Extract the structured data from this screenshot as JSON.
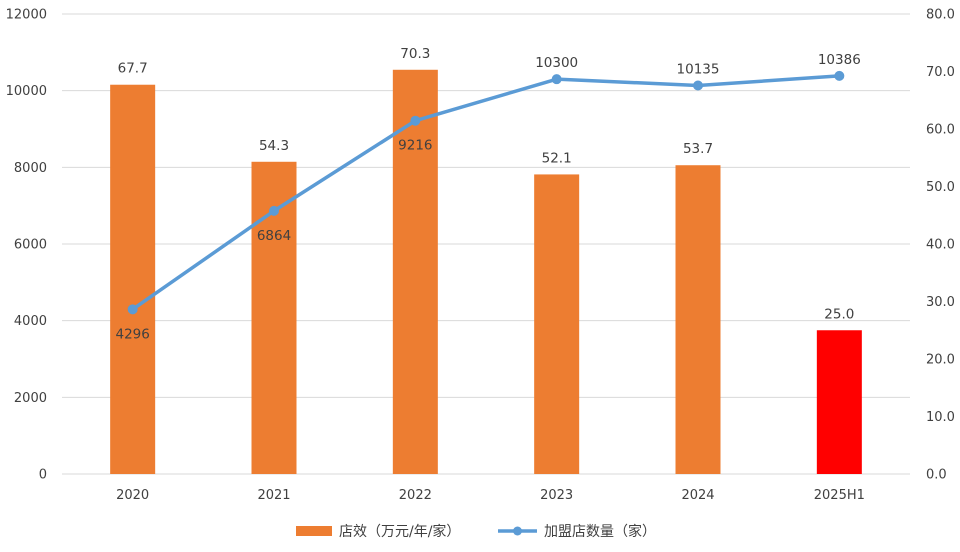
{
  "chart_data": {
    "type": "bar",
    "categories": [
      "2020",
      "2021",
      "2022",
      "2023",
      "2024",
      "2025H1"
    ],
    "series": [
      {
        "name": "店效（万元/年/家）",
        "kind": "bar",
        "axis": "right",
        "values": [
          67.7,
          54.3,
          70.3,
          52.1,
          53.7,
          25.0
        ],
        "labels": [
          "67.7",
          "54.3",
          "70.3",
          "52.1",
          "53.7",
          "25.0"
        ],
        "colors": [
          "#ED7D31",
          "#ED7D31",
          "#ED7D31",
          "#ED7D31",
          "#ED7D31",
          "#FF0000"
        ]
      },
      {
        "name": "加盟店数量（家）",
        "kind": "line",
        "axis": "left",
        "values": [
          4296,
          6864,
          9216,
          10300,
          10135,
          10386
        ],
        "labels": [
          "4296",
          "6864",
          "9216",
          "10300",
          "10135",
          "10386"
        ],
        "color": "#5B9BD5"
      }
    ],
    "y_left": {
      "ticks": [
        "0",
        "2000",
        "4000",
        "6000",
        "8000",
        "10000",
        "12000"
      ],
      "ylim": [
        0,
        12000
      ]
    },
    "y_right": {
      "ticks": [
        "0.0",
        "10.0",
        "20.0",
        "30.0",
        "40.0",
        "50.0",
        "60.0",
        "70.0",
        "80.0"
      ],
      "ylim": [
        0,
        80
      ]
    },
    "grid": true,
    "legend": {
      "position": "bottom"
    },
    "title": "",
    "xlabel": "",
    "ylabel": ""
  }
}
